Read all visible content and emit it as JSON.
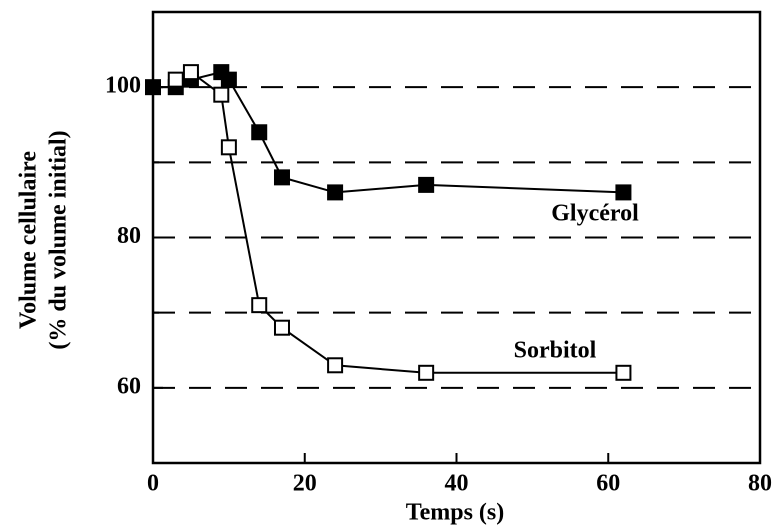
{
  "chart_data": {
    "type": "line",
    "xlabel": "Temps (s)",
    "ylabel": [
      "Volume cellulaire",
      "(% du volume initial)"
    ],
    "xlim": [
      0,
      80
    ],
    "xticks": [
      0,
      20,
      40,
      60,
      80
    ],
    "ylim": [
      50,
      110
    ],
    "yticks": [
      60,
      80,
      100
    ],
    "yminor": [
      70,
      90
    ],
    "grid": "dashed",
    "series": [
      {
        "name": "Glycérol",
        "marker": "filled-square",
        "color": "#000000",
        "x": [
          0,
          3,
          5,
          9,
          10,
          14,
          17,
          24,
          36,
          62
        ],
        "values": [
          100,
          100,
          101,
          102,
          101,
          94,
          88,
          86,
          87,
          86
        ]
      },
      {
        "name": "Sorbitol",
        "marker": "open-square",
        "color": "#000000",
        "x": [
          3,
          5,
          9,
          10,
          14,
          17,
          24,
          36,
          62
        ],
        "values": [
          101,
          102,
          99,
          92,
          71,
          68,
          63,
          62,
          62
        ]
      }
    ]
  }
}
